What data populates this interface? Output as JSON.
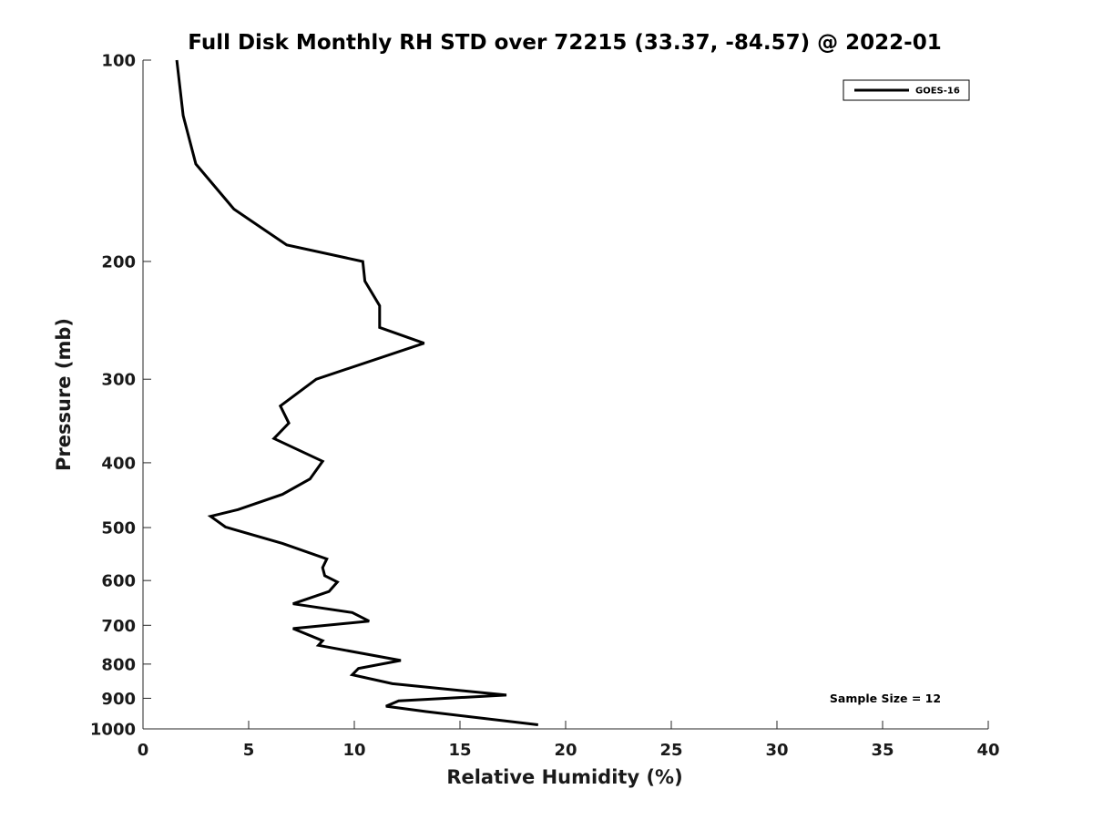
{
  "chart_data": {
    "type": "line",
    "title": "Full Disk Monthly RH STD over 72215 (33.37, -84.57) @ 2022-01",
    "xlabel": "Relative Humidity (%)",
    "ylabel": "Pressure (mb)",
    "xlim": [
      0,
      40
    ],
    "ylim": [
      100,
      1000
    ],
    "yscale": "log",
    "y_reversed": true,
    "x_ticks": [
      "0",
      "5",
      "10",
      "15",
      "20",
      "25",
      "30",
      "35",
      "40"
    ],
    "y_ticks": [
      "100",
      "200",
      "300",
      "400",
      "500",
      "600",
      "700",
      "800",
      "900",
      "1000"
    ],
    "grid": false,
    "legend_position": "top-right",
    "annotation": "Sample Size = 12",
    "series": [
      {
        "name": "GOES-16",
        "color": "#000000",
        "points": [
          [
            1.6,
            100
          ],
          [
            1.9,
            121
          ],
          [
            2.5,
            143
          ],
          [
            4.3,
            167
          ],
          [
            6.8,
            189
          ],
          [
            10.4,
            200
          ],
          [
            10.5,
            214
          ],
          [
            11.2,
            233
          ],
          [
            11.2,
            251
          ],
          [
            13.3,
            265
          ],
          [
            8.2,
            300
          ],
          [
            6.5,
            329
          ],
          [
            6.9,
            349
          ],
          [
            6.2,
            368
          ],
          [
            8.5,
            398
          ],
          [
            7.9,
            423
          ],
          [
            6.6,
            446
          ],
          [
            4.5,
            470
          ],
          [
            3.2,
            481
          ],
          [
            3.9,
            499
          ],
          [
            6.6,
            528
          ],
          [
            8.7,
            557
          ],
          [
            8.5,
            574
          ],
          [
            8.6,
            590
          ],
          [
            9.2,
            603
          ],
          [
            8.8,
            623
          ],
          [
            7.1,
            650
          ],
          [
            9.9,
            670
          ],
          [
            10.7,
            690
          ],
          [
            7.1,
            708
          ],
          [
            8.5,
            738
          ],
          [
            8.3,
            750
          ],
          [
            12.2,
            790
          ],
          [
            10.2,
            812
          ],
          [
            9.9,
            830
          ],
          [
            11.8,
            856
          ],
          [
            17.2,
            890
          ],
          [
            12.1,
            908
          ],
          [
            11.5,
            925
          ],
          [
            13.4,
            942
          ],
          [
            18.7,
            986
          ]
        ]
      }
    ]
  }
}
